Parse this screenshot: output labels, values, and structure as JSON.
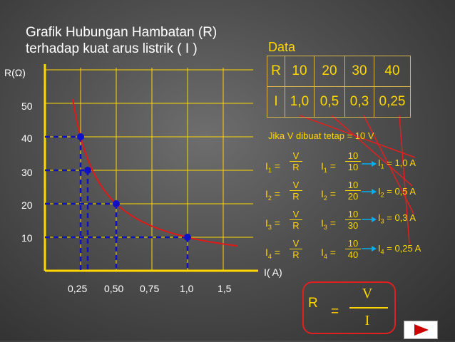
{
  "title_line1": "Grafik Hubungan Hambatan (R)",
  "title_line2": "terhadap kuat arus listrik ( I )",
  "chart_data": {
    "type": "scatter",
    "ylabel": "R(Ω)",
    "xlabel": "I( A)",
    "x_ticks": [
      "0,25",
      "0,50",
      "0,75",
      "1,0",
      "1,5"
    ],
    "y_ticks": [
      "10",
      "20",
      "30",
      "40",
      "50"
    ],
    "points": [
      {
        "x": 0.25,
        "y": 40
      },
      {
        "x": 0.3,
        "y": 30
      },
      {
        "x": 0.5,
        "y": 20
      },
      {
        "x": 1.0,
        "y": 10
      }
    ],
    "curve": "R = 10 / I",
    "curve_color": "#e01818",
    "point_color": "#1010c8",
    "axis_color": "#ffd700"
  },
  "table": {
    "heading": "Data",
    "rows": [
      [
        "R",
        "10",
        "20",
        "30",
        "40"
      ],
      [
        "I",
        "1,0",
        "0,5",
        "0,3",
        "0,25"
      ]
    ]
  },
  "note": "Jika V dibuat tetap = 10 V",
  "calc": [
    {
      "i": "I",
      "sub": "1",
      "eq": "=",
      "fn": "V",
      "fd": "R",
      "vn": "10",
      "vd": "10",
      "result": " = 1,0 A"
    },
    {
      "i": "I",
      "sub": "2",
      "eq": "=",
      "fn": "V",
      "fd": "R",
      "vn": "10",
      "vd": "20",
      "result": " = 0,5 A"
    },
    {
      "i": "I",
      "sub": "3",
      "eq": "=",
      "fn": "V",
      "fd": "R",
      "vn": "10",
      "vd": "30",
      "result": " = 0,3 A"
    },
    {
      "i": "I",
      "sub": "4",
      "eq": "=",
      "fn": "V",
      "fd": "R",
      "vn": "10",
      "vd": "40",
      "result": " = 0,25 A"
    }
  ],
  "formula": {
    "lhs": "R",
    "eq": "=",
    "num": "V",
    "den": "I"
  },
  "colors": {
    "accent": "#ffd700",
    "arrow": "#00b0f0",
    "box": "#e02020",
    "nav": "#cc0000"
  }
}
